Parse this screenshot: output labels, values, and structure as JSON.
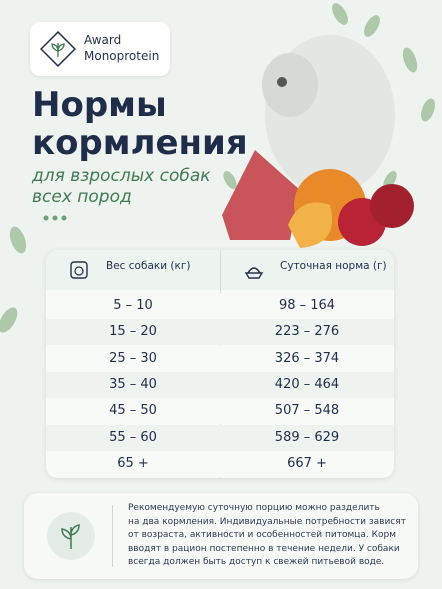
{
  "brand": [
    "Award",
    "Monoprotein"
  ],
  "title": [
    "Нормы",
    "кормления"
  ],
  "subtitle": [
    "для взрослых собак",
    "всех пород"
  ],
  "table": {
    "headers": [
      "Вес собаки (кг)",
      "Суточная норма (г)"
    ],
    "rows": [
      [
        "5 – 10",
        "98 – 164"
      ],
      [
        "15 – 20",
        "223 – 276"
      ],
      [
        "25 – 30",
        "326 – 374"
      ],
      [
        "35 – 40",
        "420 – 464"
      ],
      [
        "45 – 50",
        "507 – 548"
      ],
      [
        "55 – 60",
        "589 – 629"
      ],
      [
        "65 +",
        "667 +"
      ]
    ]
  },
  "note": [
    "Рекомендуемую суточную порцию можно разделить",
    "на два кормления. Индивидуальные потребности зависят",
    "от возраста, активности и особенностей питомца. Корм",
    "вводят в рацион постепенно в течение недели. У собаки",
    "всегда должен быть доступ к свежей питьевой воде."
  ]
}
